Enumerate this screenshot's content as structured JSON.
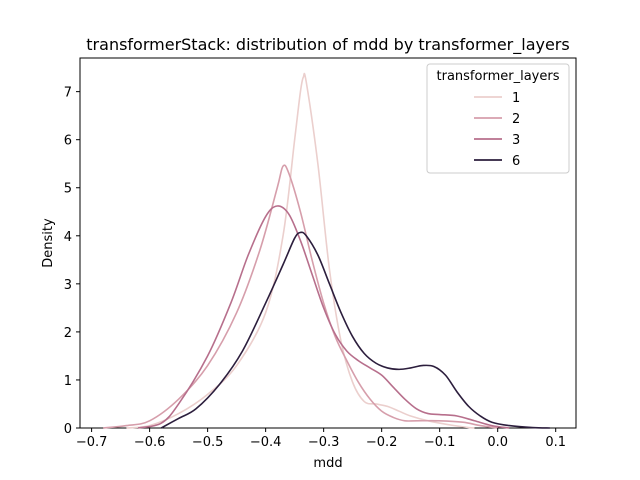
{
  "chart_data": {
    "type": "line",
    "title": "transformerStack: distribution of mdd by transformer_layers",
    "xlabel": "mdd",
    "ylabel": "Density",
    "xlim": [
      -0.72,
      0.135
    ],
    "ylim": [
      0,
      7.7
    ],
    "xticks": [
      -0.7,
      -0.6,
      -0.5,
      -0.4,
      -0.3,
      -0.2,
      -0.1,
      0.0,
      0.1
    ],
    "xtick_labels": [
      "−0.7",
      "−0.6",
      "−0.5",
      "−0.4",
      "−0.3",
      "−0.2",
      "−0.1",
      "0.0",
      "0.1"
    ],
    "yticks": [
      0,
      1,
      2,
      3,
      4,
      5,
      6,
      7
    ],
    "ytick_labels": [
      "0",
      "1",
      "2",
      "3",
      "4",
      "5",
      "6",
      "7"
    ],
    "grid": false,
    "legend": {
      "title": "transformer_layers",
      "placement": "top-right"
    },
    "series": [
      {
        "name": "1",
        "color": "#ebcfcd",
        "points": [
          [
            -0.64,
            0.0
          ],
          [
            -0.6,
            0.05
          ],
          [
            -0.55,
            0.3
          ],
          [
            -0.5,
            0.7
          ],
          [
            -0.45,
            1.3
          ],
          [
            -0.4,
            2.4
          ],
          [
            -0.37,
            4.0
          ],
          [
            -0.35,
            6.0
          ],
          [
            -0.34,
            7.0
          ],
          [
            -0.335,
            7.3
          ],
          [
            -0.33,
            7.2
          ],
          [
            -0.31,
            5.5
          ],
          [
            -0.29,
            3.3
          ],
          [
            -0.27,
            1.8
          ],
          [
            -0.25,
            0.95
          ],
          [
            -0.23,
            0.55
          ],
          [
            -0.21,
            0.5
          ],
          [
            -0.19,
            0.45
          ],
          [
            -0.17,
            0.35
          ],
          [
            -0.15,
            0.25
          ],
          [
            -0.12,
            0.15
          ],
          [
            -0.08,
            0.06
          ],
          [
            -0.05,
            0.01
          ],
          [
            -0.04,
            0.0
          ]
        ]
      },
      {
        "name": "2",
        "color": "#d69eab",
        "points": [
          [
            -0.68,
            0.0
          ],
          [
            -0.64,
            0.05
          ],
          [
            -0.6,
            0.15
          ],
          [
            -0.55,
            0.6
          ],
          [
            -0.5,
            1.3
          ],
          [
            -0.45,
            2.4
          ],
          [
            -0.41,
            3.7
          ],
          [
            -0.38,
            5.0
          ],
          [
            -0.37,
            5.45
          ],
          [
            -0.36,
            5.3
          ],
          [
            -0.34,
            4.5
          ],
          [
            -0.32,
            3.5
          ],
          [
            -0.3,
            2.6
          ],
          [
            -0.28,
            1.9
          ],
          [
            -0.26,
            1.4
          ],
          [
            -0.24,
            0.95
          ],
          [
            -0.22,
            0.6
          ],
          [
            -0.2,
            0.35
          ],
          [
            -0.18,
            0.22
          ],
          [
            -0.16,
            0.15
          ],
          [
            -0.14,
            0.15
          ],
          [
            -0.1,
            0.15
          ],
          [
            -0.06,
            0.12
          ],
          [
            -0.03,
            0.05
          ],
          [
            0.0,
            0.0
          ]
        ]
      },
      {
        "name": "3",
        "color": "#b76f8c",
        "points": [
          [
            -0.62,
            0.0
          ],
          [
            -0.58,
            0.1
          ],
          [
            -0.55,
            0.5
          ],
          [
            -0.5,
            1.5
          ],
          [
            -0.46,
            2.6
          ],
          [
            -0.43,
            3.6
          ],
          [
            -0.4,
            4.4
          ],
          [
            -0.38,
            4.62
          ],
          [
            -0.36,
            4.45
          ],
          [
            -0.34,
            3.9
          ],
          [
            -0.32,
            3.2
          ],
          [
            -0.3,
            2.5
          ],
          [
            -0.28,
            1.95
          ],
          [
            -0.26,
            1.6
          ],
          [
            -0.24,
            1.4
          ],
          [
            -0.22,
            1.25
          ],
          [
            -0.2,
            1.1
          ],
          [
            -0.18,
            0.85
          ],
          [
            -0.16,
            0.6
          ],
          [
            -0.14,
            0.4
          ],
          [
            -0.12,
            0.3
          ],
          [
            -0.1,
            0.28
          ],
          [
            -0.07,
            0.25
          ],
          [
            -0.04,
            0.15
          ],
          [
            -0.01,
            0.05
          ],
          [
            0.02,
            0.0
          ]
        ]
      },
      {
        "name": "6",
        "color": "#2c1e3d",
        "points": [
          [
            -0.58,
            0.0
          ],
          [
            -0.55,
            0.2
          ],
          [
            -0.52,
            0.4
          ],
          [
            -0.48,
            0.9
          ],
          [
            -0.44,
            1.6
          ],
          [
            -0.4,
            2.6
          ],
          [
            -0.37,
            3.4
          ],
          [
            -0.35,
            3.95
          ],
          [
            -0.34,
            4.07
          ],
          [
            -0.33,
            4.0
          ],
          [
            -0.31,
            3.6
          ],
          [
            -0.29,
            3.0
          ],
          [
            -0.27,
            2.4
          ],
          [
            -0.25,
            1.9
          ],
          [
            -0.23,
            1.55
          ],
          [
            -0.21,
            1.35
          ],
          [
            -0.19,
            1.25
          ],
          [
            -0.17,
            1.22
          ],
          [
            -0.15,
            1.25
          ],
          [
            -0.13,
            1.3
          ],
          [
            -0.11,
            1.28
          ],
          [
            -0.09,
            1.1
          ],
          [
            -0.07,
            0.75
          ],
          [
            -0.05,
            0.45
          ],
          [
            -0.03,
            0.25
          ],
          [
            -0.01,
            0.12
          ],
          [
            0.02,
            0.05
          ],
          [
            0.06,
            0.01
          ],
          [
            0.09,
            0.0
          ]
        ]
      }
    ]
  }
}
